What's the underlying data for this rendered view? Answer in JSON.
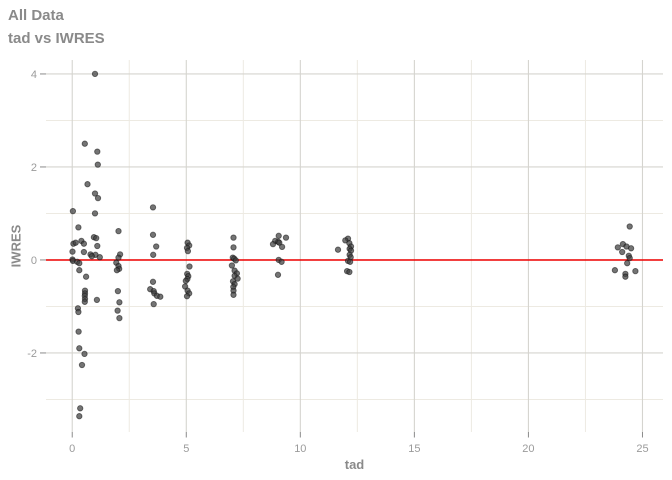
{
  "chart_data": {
    "type": "scatter",
    "title": "All Data",
    "subtitle": "tad vs IWRES",
    "xlabel": "tad",
    "ylabel": "IWRES",
    "xlim": [
      -1.15,
      25.9
    ],
    "ylim": [
      -3.7,
      4.3
    ],
    "x_major_ticks": [
      0,
      5,
      10,
      15,
      20,
      25
    ],
    "x_minor_ticks": [
      2.5,
      7.5,
      12.5,
      17.5,
      22.5
    ],
    "y_major_ticks": [
      -2,
      0,
      2,
      4
    ],
    "y_minor_ticks": [
      -3,
      -1,
      1,
      3
    ],
    "grid": true,
    "legend": false,
    "reference_line": {
      "y": 0,
      "color": "#ee0000"
    },
    "colors": {
      "grid_major": "#d5d4cf",
      "grid_minor": "#edeae2",
      "point_fill": "#3f3f3f",
      "point_stroke": "#111111",
      "tick_mark": "#8a8a8a",
      "tick_text": "#9b9b9b",
      "title_text": "#8a8a8a"
    },
    "points": [
      [
        1.0,
        4.0
      ],
      [
        0.55,
        2.5
      ],
      [
        1.1,
        2.33
      ],
      [
        1.12,
        2.05
      ],
      [
        0.67,
        1.63
      ],
      [
        1.0,
        1.43
      ],
      [
        1.13,
        1.33
      ],
      [
        0.03,
        1.05
      ],
      [
        1.0,
        1.0
      ],
      [
        0.27,
        0.7
      ],
      [
        0.95,
        0.49
      ],
      [
        1.05,
        0.47
      ],
      [
        0.05,
        0.35
      ],
      [
        0.15,
        0.37
      ],
      [
        0.4,
        0.41
      ],
      [
        0.51,
        0.35
      ],
      [
        1.1,
        0.3
      ],
      [
        0.01,
        0.18
      ],
      [
        0.51,
        0.17
      ],
      [
        0.8,
        0.12
      ],
      [
        1.02,
        0.11
      ],
      [
        1.21,
        0.06
      ],
      [
        0.86,
        0.08
      ],
      [
        0.01,
        0.01
      ],
      [
        0.03,
        -0.02
      ],
      [
        0.22,
        -0.04
      ],
      [
        0.31,
        -0.07
      ],
      [
        0.31,
        -0.22
      ],
      [
        0.61,
        -0.36
      ],
      [
        1.08,
        -0.86
      ],
      [
        0.56,
        -0.66
      ],
      [
        0.56,
        -0.72
      ],
      [
        0.55,
        -0.77
      ],
      [
        0.56,
        -0.84
      ],
      [
        0.55,
        -0.9
      ],
      [
        0.25,
        -1.04
      ],
      [
        0.27,
        -1.12
      ],
      [
        0.28,
        -1.54
      ],
      [
        0.31,
        -1.9
      ],
      [
        0.54,
        -2.02
      ],
      [
        0.43,
        -2.26
      ],
      [
        0.35,
        -3.19
      ],
      [
        0.31,
        -3.36
      ],
      [
        2.03,
        0.62
      ],
      [
        2.1,
        0.12
      ],
      [
        2.03,
        0.05
      ],
      [
        1.93,
        -0.06
      ],
      [
        2.03,
        -0.13
      ],
      [
        2.06,
        -0.19
      ],
      [
        1.96,
        -0.22
      ],
      [
        2.0,
        -0.67
      ],
      [
        2.07,
        -0.91
      ],
      [
        1.99,
        -1.09
      ],
      [
        2.07,
        -1.25
      ],
      [
        3.54,
        1.13
      ],
      [
        3.54,
        0.54
      ],
      [
        3.68,
        0.29
      ],
      [
        3.55,
        0.11
      ],
      [
        3.54,
        -0.47
      ],
      [
        3.42,
        -0.63
      ],
      [
        3.57,
        -0.67
      ],
      [
        3.6,
        -0.72
      ],
      [
        3.71,
        -0.77
      ],
      [
        3.86,
        -0.79
      ],
      [
        3.57,
        -0.95
      ],
      [
        5.06,
        0.37
      ],
      [
        5.13,
        0.31
      ],
      [
        5.03,
        0.26
      ],
      [
        5.07,
        0.19
      ],
      [
        5.14,
        -0.14
      ],
      [
        5.04,
        -0.3
      ],
      [
        5.09,
        -0.35
      ],
      [
        5.05,
        -0.41
      ],
      [
        4.98,
        -0.45
      ],
      [
        4.95,
        -0.57
      ],
      [
        5.06,
        -0.66
      ],
      [
        5.13,
        -0.72
      ],
      [
        5.03,
        -0.78
      ],
      [
        7.07,
        0.48
      ],
      [
        7.07,
        0.27
      ],
      [
        7.04,
        0.05
      ],
      [
        7.1,
        0.03
      ],
      [
        7.17,
        -0.01
      ],
      [
        7.0,
        -0.12
      ],
      [
        7.12,
        -0.23
      ],
      [
        7.22,
        -0.29
      ],
      [
        7.12,
        -0.34
      ],
      [
        7.25,
        -0.4
      ],
      [
        7.05,
        -0.46
      ],
      [
        7.12,
        -0.52
      ],
      [
        7.06,
        -0.58
      ],
      [
        7.07,
        -0.66
      ],
      [
        7.07,
        -0.75
      ],
      [
        9.05,
        0.52
      ],
      [
        9.37,
        0.48
      ],
      [
        8.9,
        0.41
      ],
      [
        9.03,
        0.39
      ],
      [
        9.08,
        0.37
      ],
      [
        8.8,
        0.34
      ],
      [
        9.2,
        0.28
      ],
      [
        9.05,
        0.0
      ],
      [
        9.18,
        -0.04
      ],
      [
        9.02,
        -0.32
      ],
      [
        11.65,
        0.22
      ],
      [
        12.09,
        0.46
      ],
      [
        11.97,
        0.42
      ],
      [
        12.15,
        0.36
      ],
      [
        12.22,
        0.29
      ],
      [
        12.16,
        0.24
      ],
      [
        12.22,
        0.2
      ],
      [
        12.16,
        0.11
      ],
      [
        12.21,
        0.06
      ],
      [
        12.09,
        -0.02
      ],
      [
        12.18,
        -0.04
      ],
      [
        12.05,
        -0.24
      ],
      [
        12.15,
        -0.26
      ],
      [
        24.44,
        0.72
      ],
      [
        24.14,
        0.34
      ],
      [
        23.92,
        0.27
      ],
      [
        24.3,
        0.29
      ],
      [
        24.5,
        0.25
      ],
      [
        24.11,
        0.17
      ],
      [
        24.4,
        0.09
      ],
      [
        24.44,
        0.04
      ],
      [
        24.33,
        -0.07
      ],
      [
        23.79,
        -0.22
      ],
      [
        24.69,
        -0.24
      ],
      [
        24.25,
        -0.3
      ],
      [
        24.25,
        -0.36
      ]
    ]
  }
}
